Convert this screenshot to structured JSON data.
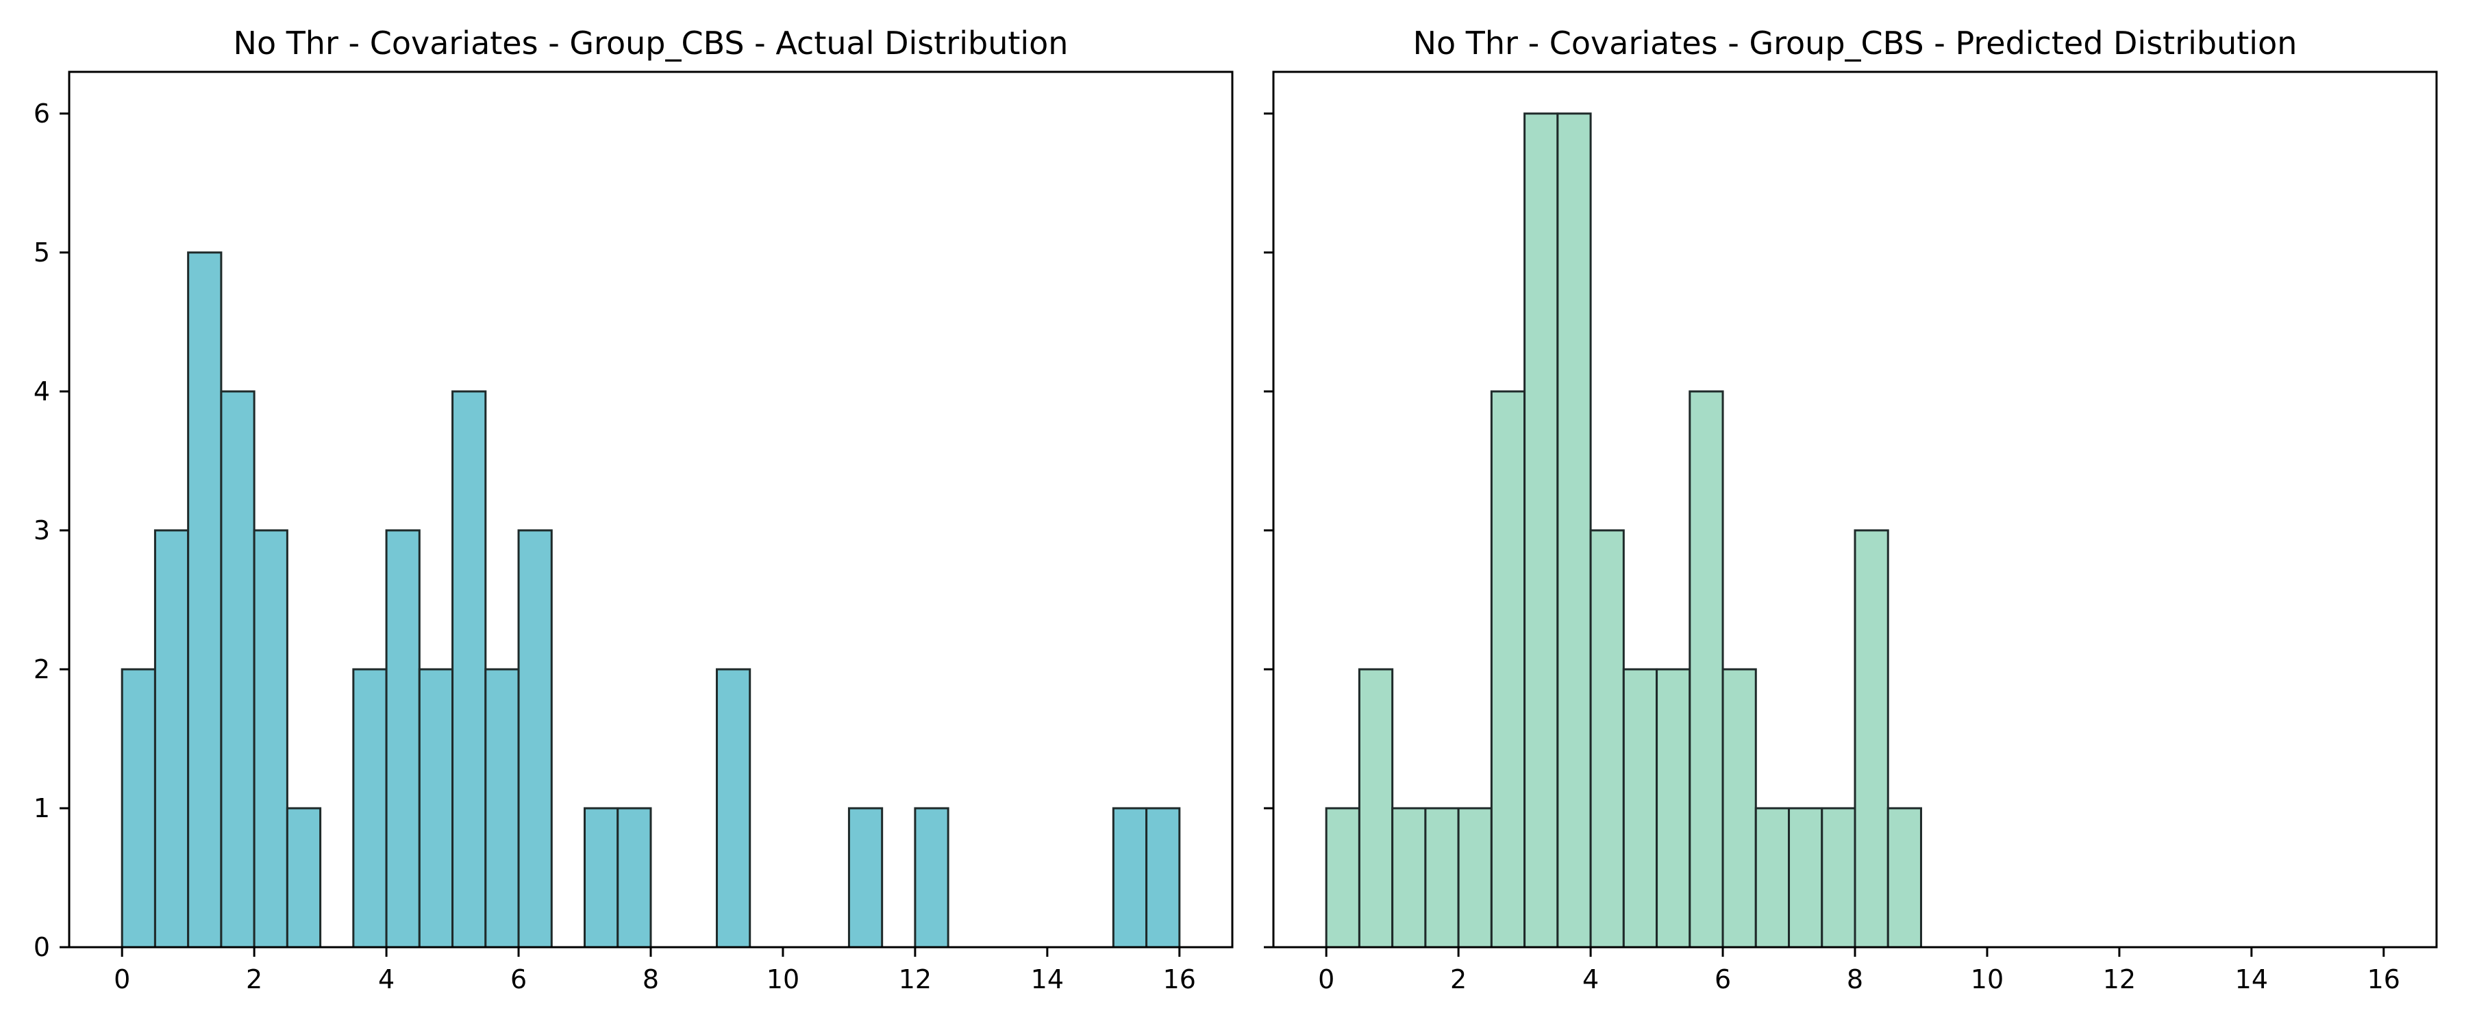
{
  "chart_data": [
    {
      "type": "bar",
      "title": "No Thr - Covariates - Group_CBS - Actual Distribution",
      "xlabel": "",
      "ylabel": "",
      "xlim": [
        -0.8,
        16.8
      ],
      "ylim": [
        0,
        6.3
      ],
      "bin_width": 0.5,
      "bin_starts": [
        0,
        0.5,
        1,
        1.5,
        2,
        2.5,
        3,
        3.5,
        4,
        4.5,
        5,
        5.5,
        6,
        6.5,
        7,
        7.5,
        8,
        8.5,
        9,
        9.5,
        10,
        10.5,
        11,
        11.5,
        12,
        12.5,
        13,
        13.5,
        14,
        14.5,
        15,
        15.5
      ],
      "values": [
        2,
        3,
        5,
        4,
        3,
        1,
        0,
        2,
        3,
        2,
        4,
        2,
        3,
        0,
        1,
        1,
        0,
        0,
        2,
        0,
        0,
        0,
        1,
        0,
        1,
        0,
        0,
        0,
        0,
        0,
        1,
        1
      ],
      "x_ticks": [
        0,
        2,
        4,
        6,
        8,
        10,
        12,
        14,
        16
      ],
      "y_ticks": [
        0,
        1,
        2,
        3,
        4,
        5,
        6
      ],
      "show_y_tick_labels": true,
      "bar_color": "#76c7d4",
      "edge_color": "#1f2a2a",
      "grid": false
    },
    {
      "type": "bar",
      "title": "No Thr - Covariates - Group_CBS - Predicted Distribution",
      "xlabel": "",
      "ylabel": "",
      "xlim": [
        -0.8,
        16.8
      ],
      "ylim": [
        0,
        6.3
      ],
      "bin_width": 0.5,
      "bin_starts": [
        0,
        0.5,
        1,
        1.5,
        2,
        2.5,
        3,
        3.5,
        4,
        4.5,
        5,
        5.5,
        6,
        6.5,
        7,
        7.5,
        8,
        8.5,
        9,
        9.5,
        10,
        10.5,
        11,
        11.5,
        12,
        12.5,
        13,
        13.5,
        14,
        14.5,
        15,
        15.5
      ],
      "values": [
        1,
        2,
        1,
        1,
        1,
        4,
        6,
        6,
        3,
        2,
        2,
        4,
        2,
        1,
        1,
        1,
        3,
        1,
        0,
        0,
        0,
        0,
        0,
        0,
        0,
        0,
        0,
        0,
        0,
        0,
        0,
        0
      ],
      "x_ticks": [
        0,
        2,
        4,
        6,
        8,
        10,
        12,
        14,
        16
      ],
      "y_ticks": [
        0,
        1,
        2,
        3,
        4,
        5,
        6
      ],
      "show_y_tick_labels": false,
      "bar_color": "#a6dcc6",
      "edge_color": "#1f2a2a",
      "grid": false
    }
  ]
}
